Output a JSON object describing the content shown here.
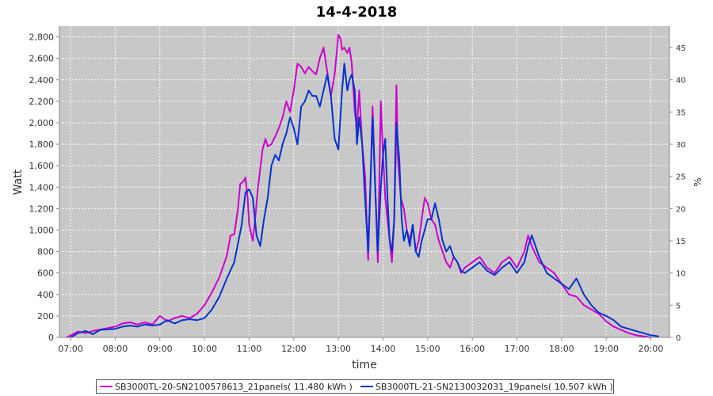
{
  "chart_data": {
    "type": "line",
    "title": "14-4-2018",
    "xlabel": "time",
    "ylabel": "Watt",
    "y2label": "%",
    "xlim": [
      "06:45",
      "20:25"
    ],
    "ylim": [
      0,
      2900
    ],
    "y2lim": [
      0,
      48.33
    ],
    "xticks": [
      "07:00",
      "08:00",
      "09:00",
      "10:00",
      "11:00",
      "12:00",
      "13:00",
      "14:00",
      "15:00",
      "16:00",
      "17:00",
      "18:00",
      "19:00",
      "20:00"
    ],
    "yticks": [
      "0",
      "200",
      "400",
      "600",
      "800",
      "1,000",
      "1,200",
      "1,400",
      "1,600",
      "1,800",
      "2,000",
      "2,200",
      "2,400",
      "2,600",
      "2,800"
    ],
    "y2ticks": [
      "0",
      "5",
      "10",
      "15",
      "20",
      "25",
      "30",
      "35",
      "40",
      "45"
    ],
    "grid": true,
    "legend_position": "bottom",
    "colors": {
      "plot_bg": "#c8c8c8",
      "grid": "#ffffff",
      "series1": "#cc00cc",
      "series2": "#0033cc"
    },
    "series": [
      {
        "name": "SB3000TL-20-SN2100578613_21panels( 11.480 kWh )",
        "color": "#cc00cc",
        "points": [
          [
            "06:55",
            0
          ],
          [
            "07:10",
            55
          ],
          [
            "07:20",
            40
          ],
          [
            "07:30",
            60
          ],
          [
            "07:45",
            80
          ],
          [
            "08:00",
            100
          ],
          [
            "08:10",
            130
          ],
          [
            "08:20",
            140
          ],
          [
            "08:30",
            120
          ],
          [
            "08:40",
            140
          ],
          [
            "08:50",
            120
          ],
          [
            "09:00",
            200
          ],
          [
            "09:10",
            150
          ],
          [
            "09:20",
            180
          ],
          [
            "09:30",
            200
          ],
          [
            "09:40",
            180
          ],
          [
            "09:50",
            220
          ],
          [
            "10:00",
            300
          ],
          [
            "10:10",
            420
          ],
          [
            "10:20",
            560
          ],
          [
            "10:30",
            760
          ],
          [
            "10:35",
            950
          ],
          [
            "10:40",
            960
          ],
          [
            "10:45",
            1200
          ],
          [
            "10:48",
            1430
          ],
          [
            "10:52",
            1450
          ],
          [
            "10:55",
            1490
          ],
          [
            "10:58",
            1300
          ],
          [
            "11:00",
            1050
          ],
          [
            "11:05",
            900
          ],
          [
            "11:08",
            1100
          ],
          [
            "11:12",
            1400
          ],
          [
            "11:18",
            1750
          ],
          [
            "11:22",
            1850
          ],
          [
            "11:25",
            1780
          ],
          [
            "11:30",
            1800
          ],
          [
            "11:35",
            1870
          ],
          [
            "11:40",
            1950
          ],
          [
            "11:45",
            2050
          ],
          [
            "11:50",
            2200
          ],
          [
            "11:55",
            2100
          ],
          [
            "12:00",
            2300
          ],
          [
            "12:05",
            2550
          ],
          [
            "12:10",
            2520
          ],
          [
            "12:15",
            2460
          ],
          [
            "12:20",
            2520
          ],
          [
            "12:25",
            2480
          ],
          [
            "12:30",
            2450
          ],
          [
            "12:35",
            2600
          ],
          [
            "12:40",
            2700
          ],
          [
            "12:45",
            2480
          ],
          [
            "12:50",
            2250
          ],
          [
            "12:55",
            2450
          ],
          [
            "13:00",
            2820
          ],
          [
            "13:03",
            2780
          ],
          [
            "13:05",
            2680
          ],
          [
            "13:08",
            2700
          ],
          [
            "13:12",
            2650
          ],
          [
            "13:15",
            2700
          ],
          [
            "13:18",
            2550
          ],
          [
            "13:22",
            2100
          ],
          [
            "13:25",
            1950
          ],
          [
            "13:28",
            2300
          ],
          [
            "13:32",
            1800
          ],
          [
            "13:36",
            1500
          ],
          [
            "13:40",
            720
          ],
          [
            "13:43",
            1400
          ],
          [
            "13:46",
            2150
          ],
          [
            "13:50",
            1300
          ],
          [
            "13:53",
            700
          ],
          [
            "13:57",
            2200
          ],
          [
            "14:00",
            1700
          ],
          [
            "14:03",
            1300
          ],
          [
            "14:06",
            1100
          ],
          [
            "14:09",
            900
          ],
          [
            "14:12",
            700
          ],
          [
            "14:15",
            1100
          ],
          [
            "14:18",
            2350
          ],
          [
            "14:20",
            1650
          ],
          [
            "14:24",
            1300
          ],
          [
            "14:28",
            1200
          ],
          [
            "14:32",
            1000
          ],
          [
            "14:36",
            900
          ],
          [
            "14:40",
            1050
          ],
          [
            "14:44",
            800
          ],
          [
            "14:48",
            900
          ],
          [
            "14:52",
            1100
          ],
          [
            "14:56",
            1300
          ],
          [
            "15:00",
            1250
          ],
          [
            "15:05",
            1100
          ],
          [
            "15:10",
            1050
          ],
          [
            "15:15",
            900
          ],
          [
            "15:20",
            800
          ],
          [
            "15:25",
            700
          ],
          [
            "15:30",
            650
          ],
          [
            "15:35",
            750
          ],
          [
            "15:40",
            700
          ],
          [
            "15:45",
            600
          ],
          [
            "15:50",
            650
          ],
          [
            "16:00",
            700
          ],
          [
            "16:10",
            750
          ],
          [
            "16:20",
            650
          ],
          [
            "16:30",
            600
          ],
          [
            "16:40",
            700
          ],
          [
            "16:50",
            750
          ],
          [
            "17:00",
            650
          ],
          [
            "17:10",
            800
          ],
          [
            "17:15",
            950
          ],
          [
            "17:20",
            850
          ],
          [
            "17:30",
            700
          ],
          [
            "17:40",
            650
          ],
          [
            "17:50",
            600
          ],
          [
            "18:00",
            500
          ],
          [
            "18:10",
            400
          ],
          [
            "18:20",
            380
          ],
          [
            "18:30",
            300
          ],
          [
            "18:40",
            260
          ],
          [
            "18:50",
            220
          ],
          [
            "19:00",
            150
          ],
          [
            "19:10",
            100
          ],
          [
            "19:20",
            70
          ],
          [
            "19:30",
            40
          ],
          [
            "19:40",
            20
          ],
          [
            "19:50",
            10
          ],
          [
            "20:00",
            0
          ]
        ]
      },
      {
        "name": "SB3000TL-21-SN2130032031_19panels( 10.507 kWh )",
        "color": "#0033cc",
        "points": [
          [
            "07:00",
            0
          ],
          [
            "07:10",
            40
          ],
          [
            "07:20",
            60
          ],
          [
            "07:30",
            30
          ],
          [
            "07:40",
            70
          ],
          [
            "08:00",
            80
          ],
          [
            "08:10",
            100
          ],
          [
            "08:20",
            110
          ],
          [
            "08:30",
            100
          ],
          [
            "08:40",
            120
          ],
          [
            "08:50",
            110
          ],
          [
            "09:00",
            120
          ],
          [
            "09:10",
            160
          ],
          [
            "09:20",
            130
          ],
          [
            "09:30",
            160
          ],
          [
            "09:40",
            170
          ],
          [
            "09:50",
            160
          ],
          [
            "10:00",
            180
          ],
          [
            "10:10",
            260
          ],
          [
            "10:20",
            380
          ],
          [
            "10:30",
            550
          ],
          [
            "10:40",
            700
          ],
          [
            "10:50",
            1050
          ],
          [
            "10:55",
            1350
          ],
          [
            "11:00",
            1380
          ],
          [
            "11:05",
            1300
          ],
          [
            "11:10",
            950
          ],
          [
            "11:15",
            850
          ],
          [
            "11:20",
            1100
          ],
          [
            "11:25",
            1300
          ],
          [
            "11:30",
            1600
          ],
          [
            "11:35",
            1700
          ],
          [
            "11:40",
            1650
          ],
          [
            "11:45",
            1800
          ],
          [
            "11:50",
            1900
          ],
          [
            "11:55",
            2050
          ],
          [
            "12:00",
            1950
          ],
          [
            "12:05",
            1800
          ],
          [
            "12:10",
            2150
          ],
          [
            "12:15",
            2200
          ],
          [
            "12:20",
            2300
          ],
          [
            "12:25",
            2250
          ],
          [
            "12:30",
            2250
          ],
          [
            "12:35",
            2150
          ],
          [
            "12:40",
            2300
          ],
          [
            "12:45",
            2450
          ],
          [
            "12:50",
            2250
          ],
          [
            "12:55",
            1850
          ],
          [
            "13:00",
            1750
          ],
          [
            "13:05",
            2300
          ],
          [
            "13:08",
            2550
          ],
          [
            "13:12",
            2300
          ],
          [
            "13:15",
            2400
          ],
          [
            "13:18",
            2450
          ],
          [
            "13:22",
            2300
          ],
          [
            "13:25",
            1800
          ],
          [
            "13:28",
            2050
          ],
          [
            "13:32",
            1800
          ],
          [
            "13:35",
            1400
          ],
          [
            "13:40",
            800
          ],
          [
            "13:43",
            1400
          ],
          [
            "13:46",
            2050
          ],
          [
            "13:50",
            1300
          ],
          [
            "13:53",
            800
          ],
          [
            "13:57",
            1400
          ],
          [
            "14:00",
            1700
          ],
          [
            "14:03",
            1850
          ],
          [
            "14:06",
            1300
          ],
          [
            "14:09",
            900
          ],
          [
            "14:12",
            800
          ],
          [
            "14:15",
            1100
          ],
          [
            "14:18",
            2000
          ],
          [
            "14:22",
            1650
          ],
          [
            "14:25",
            1100
          ],
          [
            "14:28",
            900
          ],
          [
            "14:32",
            1000
          ],
          [
            "14:36",
            850
          ],
          [
            "14:40",
            1050
          ],
          [
            "14:44",
            800
          ],
          [
            "14:48",
            750
          ],
          [
            "14:52",
            900
          ],
          [
            "14:56",
            1000
          ],
          [
            "15:00",
            1100
          ],
          [
            "15:05",
            1100
          ],
          [
            "15:10",
            1250
          ],
          [
            "15:15",
            1100
          ],
          [
            "15:20",
            900
          ],
          [
            "15:25",
            800
          ],
          [
            "15:30",
            850
          ],
          [
            "15:35",
            750
          ],
          [
            "15:40",
            700
          ],
          [
            "15:45",
            620
          ],
          [
            "15:50",
            600
          ],
          [
            "16:00",
            650
          ],
          [
            "16:10",
            700
          ],
          [
            "16:20",
            620
          ],
          [
            "16:30",
            580
          ],
          [
            "16:40",
            650
          ],
          [
            "16:50",
            700
          ],
          [
            "17:00",
            600
          ],
          [
            "17:10",
            700
          ],
          [
            "17:15",
            850
          ],
          [
            "17:20",
            950
          ],
          [
            "17:30",
            750
          ],
          [
            "17:40",
            600
          ],
          [
            "17:50",
            550
          ],
          [
            "18:00",
            500
          ],
          [
            "18:10",
            450
          ],
          [
            "18:20",
            550
          ],
          [
            "18:30",
            400
          ],
          [
            "18:40",
            300
          ],
          [
            "18:50",
            230
          ],
          [
            "19:00",
            200
          ],
          [
            "19:10",
            160
          ],
          [
            "19:20",
            100
          ],
          [
            "19:30",
            80
          ],
          [
            "19:40",
            60
          ],
          [
            "19:50",
            40
          ],
          [
            "20:00",
            20
          ],
          [
            "20:10",
            10
          ]
        ]
      }
    ]
  }
}
